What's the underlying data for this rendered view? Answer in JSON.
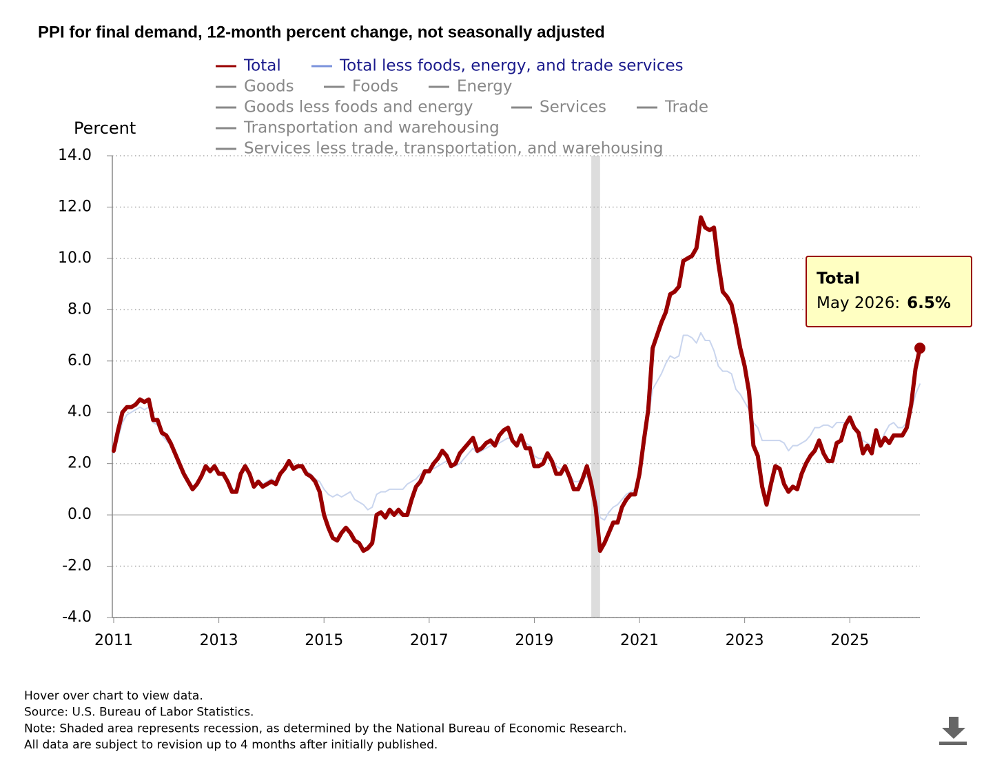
{
  "chart_data": {
    "type": "line",
    "title": "PPI for final demand, 12-month percent change, not seasonally adjusted",
    "y_label": "Percent",
    "x": [
      "2011-01",
      "2011-02",
      "2011-03",
      "2011-04",
      "2011-05",
      "2011-06",
      "2011-07",
      "2011-08",
      "2011-09",
      "2011-10",
      "2011-11",
      "2011-12",
      "2012-01",
      "2012-02",
      "2012-03",
      "2012-04",
      "2012-05",
      "2012-06",
      "2012-07",
      "2012-08",
      "2012-09",
      "2012-10",
      "2012-11",
      "2012-12",
      "2013-01",
      "2013-02",
      "2013-03",
      "2013-04",
      "2013-05",
      "2013-06",
      "2013-07",
      "2013-08",
      "2013-09",
      "2013-10",
      "2013-11",
      "2013-12",
      "2014-01",
      "2014-02",
      "2014-03",
      "2014-04",
      "2014-05",
      "2014-06",
      "2014-07",
      "2014-08",
      "2014-09",
      "2014-10",
      "2014-11",
      "2014-12",
      "2015-01",
      "2015-02",
      "2015-03",
      "2015-04",
      "2015-05",
      "2015-06",
      "2015-07",
      "2015-08",
      "2015-09",
      "2015-10",
      "2015-11",
      "2015-12",
      "2016-01",
      "2016-02",
      "2016-03",
      "2016-04",
      "2016-05",
      "2016-06",
      "2016-07",
      "2016-08",
      "2016-09",
      "2016-10",
      "2016-11",
      "2016-12",
      "2017-01",
      "2017-02",
      "2017-03",
      "2017-04",
      "2017-05",
      "2017-06",
      "2017-07",
      "2017-08",
      "2017-09",
      "2017-10",
      "2017-11",
      "2017-12",
      "2018-01",
      "2018-02",
      "2018-03",
      "2018-04",
      "2018-05",
      "2018-06",
      "2018-07",
      "2018-08",
      "2018-09",
      "2018-10",
      "2018-11",
      "2018-12",
      "2019-01",
      "2019-02",
      "2019-03",
      "2019-04",
      "2019-05",
      "2019-06",
      "2019-07",
      "2019-08",
      "2019-09",
      "2019-10",
      "2019-11",
      "2019-12",
      "2020-01",
      "2020-02",
      "2020-03",
      "2020-04",
      "2020-05",
      "2020-06",
      "2020-07",
      "2020-08",
      "2020-09",
      "2020-10",
      "2020-11",
      "2020-12",
      "2021-01",
      "2021-02",
      "2021-03",
      "2021-04",
      "2021-05",
      "2021-06",
      "2021-07",
      "2021-08",
      "2021-09",
      "2021-10",
      "2021-11",
      "2021-12",
      "2022-01",
      "2022-02",
      "2022-03",
      "2022-04",
      "2022-05",
      "2022-06",
      "2022-07",
      "2022-08",
      "2022-09",
      "2022-10",
      "2022-11",
      "2022-12",
      "2023-01",
      "2023-02",
      "2023-03",
      "2023-04",
      "2023-05",
      "2023-06",
      "2023-07",
      "2023-08",
      "2023-09",
      "2023-10",
      "2023-11",
      "2023-12",
      "2024-01",
      "2024-02",
      "2024-03",
      "2024-04",
      "2024-05",
      "2024-06",
      "2024-07",
      "2024-08",
      "2024-09",
      "2024-10",
      "2024-11",
      "2024-12",
      "2025-01",
      "2025-02",
      "2025-03",
      "2025-04",
      "2025-05",
      "2025-06",
      "2025-07",
      "2025-08",
      "2025-09",
      "2025-10",
      "2025-11",
      "2025-12",
      "2026-01",
      "2026-02",
      "2026-03",
      "2026-04",
      "2026-05"
    ],
    "series": [
      {
        "name": "Total",
        "color": "#990000",
        "legend_text_color": "#1a1a8c",
        "width": 6,
        "values": [
          2.5,
          3.3,
          4.0,
          4.2,
          4.2,
          4.3,
          4.5,
          4.4,
          4.5,
          3.7,
          3.7,
          3.2,
          3.1,
          2.8,
          2.4,
          2.0,
          1.6,
          1.3,
          1.0,
          1.2,
          1.5,
          1.9,
          1.7,
          1.9,
          1.6,
          1.6,
          1.3,
          0.9,
          0.9,
          1.6,
          1.9,
          1.6,
          1.1,
          1.3,
          1.1,
          1.2,
          1.3,
          1.2,
          1.6,
          1.8,
          2.1,
          1.8,
          1.9,
          1.9,
          1.6,
          1.5,
          1.3,
          0.9,
          0.0,
          -0.5,
          -0.9,
          -1.0,
          -0.7,
          -0.5,
          -0.7,
          -1.0,
          -1.1,
          -1.4,
          -1.3,
          -1.1,
          0.0,
          0.1,
          -0.1,
          0.2,
          0.0,
          0.2,
          0.0,
          0.0,
          0.6,
          1.1,
          1.3,
          1.7,
          1.7,
          2.0,
          2.2,
          2.5,
          2.3,
          1.9,
          2.0,
          2.4,
          2.6,
          2.8,
          3.0,
          2.5,
          2.6,
          2.8,
          2.9,
          2.7,
          3.1,
          3.3,
          3.4,
          2.9,
          2.7,
          3.1,
          2.6,
          2.6,
          1.9,
          1.9,
          2.0,
          2.4,
          2.1,
          1.6,
          1.6,
          1.9,
          1.5,
          1.0,
          1.0,
          1.4,
          1.9,
          1.2,
          0.3,
          -1.4,
          -1.1,
          -0.7,
          -0.3,
          -0.3,
          0.3,
          0.6,
          0.8,
          0.8,
          1.6,
          2.9,
          4.1,
          6.5,
          7.0,
          7.5,
          7.9,
          8.6,
          8.7,
          8.9,
          9.9,
          10.0,
          10.1,
          10.4,
          11.6,
          11.2,
          11.1,
          11.2,
          9.8,
          8.7,
          8.5,
          8.2,
          7.4,
          6.5,
          5.8,
          4.8,
          2.7,
          2.3,
          1.1,
          0.4,
          1.2,
          1.9,
          1.8,
          1.2,
          0.9,
          1.1,
          1.0,
          1.6,
          2.0,
          2.3,
          2.5,
          2.9,
          2.4,
          2.1,
          2.1,
          2.8,
          2.9,
          3.5,
          3.8,
          3.4,
          3.2,
          2.4,
          2.7,
          2.4,
          3.3,
          2.7,
          3.0,
          2.8,
          3.1,
          3.1,
          3.1,
          3.4,
          4.3,
          5.7,
          6.5
        ]
      },
      {
        "name": "Total less foods, energy, and trade services",
        "color": "#c9d5ee",
        "legend_color": "#7b93dc",
        "legend_text_color": "#1a1a8c",
        "width": 2,
        "values": [
          2.4,
          3.0,
          3.6,
          3.9,
          4.0,
          4.1,
          4.2,
          4.1,
          4.2,
          3.6,
          3.5,
          3.1,
          2.9,
          2.7,
          2.3,
          1.9,
          1.6,
          1.3,
          1.1,
          1.2,
          1.5,
          1.8,
          1.7,
          1.8,
          1.6,
          1.5,
          1.3,
          1.0,
          1.0,
          1.5,
          1.8,
          1.6,
          1.2,
          1.3,
          1.2,
          1.3,
          1.4,
          1.3,
          1.6,
          1.8,
          2.0,
          1.8,
          1.9,
          1.8,
          1.7,
          1.6,
          1.4,
          1.3,
          1.0,
          0.8,
          0.7,
          0.8,
          0.7,
          0.8,
          0.9,
          0.6,
          0.5,
          0.4,
          0.2,
          0.3,
          0.8,
          0.9,
          0.9,
          1.0,
          1.0,
          1.0,
          1.0,
          1.2,
          1.3,
          1.4,
          1.6,
          1.7,
          1.8,
          1.8,
          1.9,
          2.0,
          2.1,
          2.0,
          1.9,
          2.0,
          2.2,
          2.4,
          2.6,
          2.4,
          2.5,
          2.6,
          2.7,
          2.7,
          2.8,
          2.9,
          3.0,
          2.9,
          2.8,
          2.9,
          2.8,
          2.7,
          2.3,
          2.2,
          2.2,
          2.3,
          2.2,
          1.9,
          1.8,
          1.8,
          1.6,
          1.3,
          1.3,
          1.4,
          1.5,
          1.2,
          0.8,
          -0.1,
          -0.2,
          0.1,
          0.3,
          0.4,
          0.6,
          0.8,
          0.9,
          1.0,
          1.6,
          2.6,
          3.8,
          4.9,
          5.2,
          5.5,
          5.9,
          6.2,
          6.1,
          6.2,
          7.0,
          7.0,
          6.9,
          6.7,
          7.1,
          6.8,
          6.8,
          6.4,
          5.8,
          5.6,
          5.6,
          5.5,
          4.9,
          4.7,
          4.4,
          4.1,
          3.6,
          3.4,
          2.9,
          2.9,
          2.9,
          2.9,
          2.9,
          2.8,
          2.5,
          2.7,
          2.7,
          2.8,
          2.9,
          3.1,
          3.4,
          3.4,
          3.5,
          3.5,
          3.4,
          3.6,
          3.6,
          3.6,
          3.6,
          3.4,
          3.3,
          2.9,
          2.8,
          2.7,
          3.0,
          2.8,
          3.2,
          3.5,
          3.6,
          3.4,
          3.4,
          3.6,
          4.0,
          4.7,
          5.1
        ]
      }
    ],
    "hidden_series": [
      "Goods",
      "Foods",
      "Energy",
      "Goods less foods and energy",
      "Services",
      "Trade",
      "Transportation and warehousing",
      "Services less trade, transportation, and warehousing"
    ],
    "hidden_color": "#888888",
    "xlim": [
      "2011-01",
      "2026-05"
    ],
    "xticks": [
      2011,
      2013,
      2015,
      2017,
      2019,
      2021,
      2023,
      2025
    ],
    "ylim": [
      -4,
      14
    ],
    "yticks": [
      {
        "value": -4,
        "label": "-4.0"
      },
      {
        "value": -2,
        "label": "-2.0"
      },
      {
        "value": 0,
        "label": "0.0"
      },
      {
        "value": 2,
        "label": "2.0"
      },
      {
        "value": 4,
        "label": "4.0"
      },
      {
        "value": 6,
        "label": "6.0"
      },
      {
        "value": 8,
        "label": "8.0"
      },
      {
        "value": 10,
        "label": "10.0"
      },
      {
        "value": 12,
        "label": "12.0"
      },
      {
        "value": 14,
        "label": "14.0"
      }
    ],
    "grid": true,
    "recession": {
      "start": "2020-02",
      "end": "2020-04",
      "color": "#dddddd"
    },
    "tooltip": {
      "series": "Total",
      "date_label": "May 2026:",
      "value": 6.5,
      "value_label": "6.5%"
    },
    "notes": [
      "Hover over chart to view data.",
      "Source: U.S. Bureau of Labor Statistics.",
      "Note: Shaded area represents recession, as determined by the National Bureau of Economic Research.",
      "All data are subject to revision up to 4 months after initially published."
    ]
  }
}
